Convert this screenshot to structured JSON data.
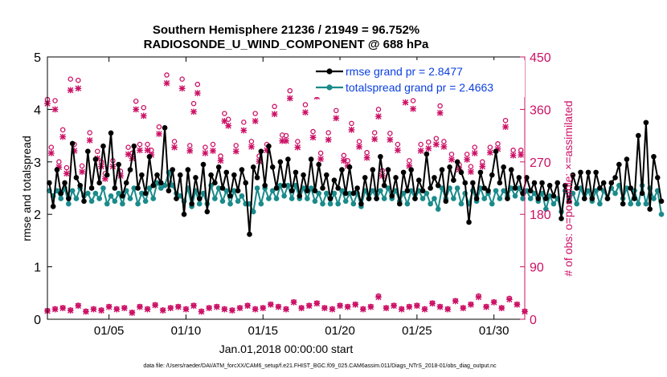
{
  "chart_data": {
    "type": "line",
    "title": "Southern Hemisphere 21236 / 21949 = 96.752%",
    "subtitle": "RADIOSONDE_U_WIND_COMPONENT @ 688 hPa",
    "xlabel": "Jan.01,2018 00:00:00 start",
    "ylabel_left": "rmse and totalspread",
    "ylabel_right": "# of obs: o=possible; ×=assimilated",
    "footnote": "data file: /Users/raeder/DAI/ATM_forcXX/CAM6_setup/f.e21.FHIST_BGC.f09_025.CAM6assim.011/Diags_NTrS_2018-01/obs_diag_output.nc",
    "xlim_days": [
      1,
      32
    ],
    "ylim_left": [
      0,
      5
    ],
    "ylim_right": [
      0,
      450
    ],
    "xticks": [
      {
        "day": 5,
        "label": "01/05"
      },
      {
        "day": 10,
        "label": "01/10"
      },
      {
        "day": 15,
        "label": "01/15"
      },
      {
        "day": 20,
        "label": "01/20"
      },
      {
        "day": 25,
        "label": "01/25"
      },
      {
        "day": 30,
        "label": "01/30"
      }
    ],
    "yticks_left": [
      "0",
      "1",
      "2",
      "3",
      "4",
      "5"
    ],
    "yticks_right": [
      "0",
      "90",
      "180",
      "270",
      "360",
      "450"
    ],
    "x_step_days": 0.25,
    "x_start_day": 1.125,
    "series": [
      {
        "name": "rmse grand pr = 2.8477",
        "axis": "left",
        "color": "#000000",
        "values": [
          2.6,
          2.15,
          2.85,
          2.4,
          2.6,
          2.3,
          3.35,
          2.7,
          2.55,
          2.25,
          3.2,
          2.5,
          3.05,
          2.6,
          3.3,
          2.75,
          3.55,
          2.5,
          2.95,
          2.35,
          2.6,
          2.85,
          3.3,
          2.5,
          2.75,
          2.4,
          3.1,
          2.55,
          2.75,
          2.6,
          3.65,
          2.45,
          2.85,
          2.3,
          2.75,
          2.0,
          2.85,
          2.2,
          2.7,
          2.3,
          2.95,
          2.05,
          2.75,
          2.6,
          2.9,
          2.5,
          2.8,
          2.35,
          2.75,
          2.45,
          2.85,
          2.6,
          1.62,
          2.9,
          2.7,
          3.2,
          2.55,
          3.3,
          2.9,
          2.5,
          3.0,
          2.55,
          3.05,
          2.45,
          2.8,
          2.35,
          2.75,
          2.45,
          3.05,
          2.45,
          2.95,
          2.5,
          2.75,
          2.3,
          2.65,
          2.5,
          2.85,
          2.4,
          2.9,
          2.4,
          2.5,
          2.2,
          2.7,
          2.3,
          2.85,
          2.3,
          3.1,
          2.55,
          2.85,
          2.35,
          2.7,
          2.2,
          2.8,
          2.45,
          2.85,
          2.3,
          2.65,
          2.45,
          3.15,
          2.5,
          2.7,
          2.55,
          2.85,
          2.25,
          2.9,
          2.65,
          3.0,
          2.8,
          2.6,
          1.85,
          2.6,
          2.3,
          2.8,
          2.5,
          2.45,
          2.75,
          3.2,
          2.6,
          2.9,
          2.3,
          2.85,
          2.5,
          2.7,
          2.4,
          2.7,
          2.45,
          2.6,
          2.3,
          2.6,
          2.3,
          2.55,
          2.35,
          2.6,
          1.92,
          2.55,
          2.25,
          2.75,
          2.5,
          2.8,
          2.3,
          2.8,
          2.3,
          2.8,
          2.5,
          2.6,
          2.3,
          2.6,
          2.7,
          2.95,
          2.2,
          3.05,
          2.5,
          2.3,
          3.5,
          2.4,
          3.75,
          2.1,
          3.1,
          2.7,
          2.25
        ]
      },
      {
        "name": "totalspread grand pr = 2.4663",
        "axis": "left",
        "color": "#1a8a8a",
        "values": [
          2.45,
          2.35,
          2.45,
          2.3,
          2.5,
          2.2,
          2.45,
          2.3,
          2.5,
          2.35,
          2.4,
          2.25,
          2.4,
          2.3,
          2.5,
          2.2,
          2.35,
          2.25,
          2.4,
          2.2,
          2.45,
          2.3,
          2.5,
          2.2,
          2.4,
          2.25,
          2.5,
          2.3,
          2.6,
          2.5,
          2.55,
          2.8,
          2.55,
          2.4,
          2.35,
          2.25,
          2.5,
          2.15,
          2.45,
          2.2,
          2.4,
          2.2,
          2.55,
          2.3,
          2.5,
          2.25,
          2.45,
          2.2,
          2.45,
          2.25,
          2.35,
          2.2,
          2.2,
          2.05,
          2.5,
          2.2,
          2.5,
          2.3,
          2.45,
          2.3,
          2.55,
          2.35,
          2.55,
          2.3,
          2.55,
          2.3,
          2.5,
          2.3,
          2.5,
          2.25,
          2.4,
          2.2,
          2.4,
          2.2,
          2.4,
          2.2,
          2.45,
          2.25,
          2.4,
          2.2,
          2.4,
          2.15,
          2.45,
          2.3,
          2.45,
          2.3,
          2.45,
          2.3,
          2.5,
          2.3,
          2.45,
          2.25,
          2.4,
          2.2,
          2.45,
          2.3,
          2.45,
          2.3,
          2.4,
          2.2,
          2.3,
          2.1,
          2.5,
          2.3,
          2.5,
          2.3,
          2.5,
          2.2,
          2.4,
          2.2,
          2.45,
          2.25,
          2.5,
          2.3,
          2.4,
          2.2,
          2.45,
          2.3,
          2.45,
          2.35,
          2.5,
          2.35,
          2.5,
          2.3,
          2.45,
          2.3,
          2.4,
          2.25,
          2.4,
          2.1,
          2.35,
          2.2,
          2.3,
          2.05,
          2.45,
          2.3,
          2.4,
          2.2,
          2.5,
          2.3,
          2.45,
          2.25,
          2.45,
          2.2,
          2.45,
          2.3,
          2.5,
          2.4,
          2.55,
          2.3,
          2.5,
          2.2,
          2.45,
          2.2,
          2.55,
          2.2,
          2.5,
          2.3,
          2.45,
          2.0
        ]
      },
      {
        "name": "obs possible (o)",
        "axis": "right",
        "color": "#cc1166",
        "days": [
          1.0,
          1.25,
          1.5,
          1.75,
          2.0,
          2.25,
          2.5,
          2.75,
          3.0,
          3.25,
          3.75,
          4.25,
          4.5,
          4.75,
          5.25,
          5.75,
          6.25,
          6.5,
          6.75,
          7.0,
          7.25,
          7.5,
          7.75,
          8.25,
          8.75,
          9.25,
          9.75,
          10.25,
          10.5,
          10.75,
          11.25,
          11.75,
          12.25,
          12.5,
          12.75,
          13.25,
          13.75,
          14.25,
          14.5,
          14.75,
          15.25,
          15.75,
          16.25,
          16.5,
          16.75,
          17.25,
          17.75,
          18.25,
          18.5,
          18.75,
          19.25,
          19.75,
          20.25,
          20.5,
          20.75,
          21.25,
          21.75,
          22.25,
          22.5,
          22.75,
          23.25,
          23.75,
          24.25,
          24.5,
          24.75,
          25.25,
          25.75,
          26.25,
          26.5,
          26.75,
          27.25,
          27.75,
          28.25,
          28.5,
          28.75,
          29.25,
          29.75,
          30.25,
          30.5,
          30.75,
          31.25,
          31.75
        ],
        "values": [
          377,
          295,
          375,
          270,
          325,
          260,
          412,
          300,
          410,
          263,
          320,
          288,
          270,
          250,
          272,
          254,
          295,
          285,
          374,
          300,
          363,
          300,
          290,
          330,
          419,
          305,
          412,
          298,
          370,
          403,
          295,
          300,
          280,
          353,
          343,
          298,
          338,
          305,
          353,
          280,
          300,
          365,
          316,
          315,
          392,
          305,
          368,
          322,
          395,
          285,
          320,
          358,
          281,
          272,
          336,
          305,
          286,
          320,
          360,
          255,
          319,
          300,
          386,
          272,
          375,
          300,
          304,
          310,
          366,
          305,
          283,
          265,
          283,
          262,
          295,
          270,
          295,
          301,
          403,
          341,
          290,
          290
        ]
      },
      {
        "name": "obs assimilated (×)",
        "axis": "right",
        "color": "#cc1166",
        "days": [
          1.0,
          1.25,
          1.5,
          1.75,
          2.0,
          2.25,
          2.5,
          2.75,
          3.0,
          3.25,
          3.75,
          4.25,
          4.5,
          4.75,
          5.25,
          5.75,
          6.25,
          6.5,
          6.75,
          7.0,
          7.25,
          7.5,
          7.75,
          8.25,
          8.75,
          9.25,
          9.75,
          10.25,
          10.5,
          10.75,
          11.25,
          11.75,
          12.25,
          12.5,
          12.75,
          13.25,
          13.75,
          14.25,
          14.5,
          14.75,
          15.25,
          15.75,
          16.25,
          16.5,
          16.75,
          17.25,
          17.75,
          18.25,
          18.5,
          18.75,
          19.25,
          19.75,
          20.25,
          20.5,
          20.75,
          21.25,
          21.75,
          22.25,
          22.5,
          22.75,
          23.25,
          23.75,
          24.25,
          24.5,
          24.75,
          25.25,
          25.75,
          26.25,
          26.5,
          26.75,
          27.25,
          27.75,
          28.25,
          28.5,
          28.75,
          29.25,
          29.75,
          30.25,
          30.5,
          30.75,
          31.25,
          31.75
        ],
        "values": [
          370,
          285,
          360,
          261,
          313,
          250,
          393,
          289,
          396,
          253,
          307,
          276,
          262,
          241,
          262,
          246,
          283,
          276,
          360,
          290,
          349,
          290,
          282,
          318,
          405,
          295,
          396,
          289,
          356,
          388,
          285,
          289,
          272,
          340,
          332,
          288,
          324,
          296,
          340,
          271,
          290,
          352,
          306,
          306,
          379,
          295,
          355,
          312,
          382,
          275,
          308,
          345,
          272,
          263,
          325,
          296,
          277,
          309,
          348,
          246,
          308,
          290,
          372,
          263,
          361,
          289,
          293,
          300,
          354,
          296,
          274,
          257,
          274,
          253,
          285,
          262,
          286,
          292,
          389,
          330,
          281,
          282
        ]
      },
      {
        "name": "obs count low (o)",
        "axis": "right",
        "color": "#cc1166",
        "days": [
          1.0,
          1.5,
          2.0,
          2.5,
          3.0,
          3.5,
          4.0,
          4.5,
          5.0,
          5.5,
          6.0,
          6.5,
          7.0,
          7.5,
          8.0,
          8.5,
          9.0,
          9.5,
          10.0,
          10.5,
          11.0,
          11.5,
          12.0,
          12.5,
          13.0,
          13.5,
          14.0,
          14.5,
          15.0,
          15.5,
          16.0,
          16.5,
          17.0,
          17.5,
          18.0,
          18.5,
          19.0,
          19.5,
          20.0,
          20.5,
          21.0,
          21.5,
          22.0,
          22.5,
          23.0,
          23.5,
          24.0,
          24.5,
          25.0,
          25.5,
          26.0,
          26.5,
          27.0,
          27.5,
          28.0,
          28.5,
          29.0,
          29.5,
          30.0,
          30.5,
          31.0,
          31.5,
          32.0
        ],
        "values": [
          15,
          18,
          20,
          16,
          24,
          14,
          18,
          16,
          22,
          18,
          20,
          12,
          22,
          18,
          25,
          16,
          20,
          22,
          18,
          24,
          14,
          20,
          22,
          18,
          16,
          20,
          24,
          18,
          20,
          26,
          22,
          18,
          30,
          20,
          24,
          28,
          20,
          18,
          24,
          22,
          26,
          18,
          22,
          40,
          20,
          24,
          18,
          22,
          24,
          18,
          28,
          22,
          18,
          32,
          20,
          26,
          40,
          22,
          30,
          20,
          36,
          26,
          14
        ]
      },
      {
        "name": "obs count low (×)",
        "axis": "right",
        "color": "#cc1166",
        "days": [
          1.0,
          1.5,
          2.0,
          2.5,
          3.0,
          3.5,
          4.0,
          4.5,
          5.0,
          5.5,
          6.0,
          6.5,
          7.0,
          7.5,
          8.0,
          8.5,
          9.0,
          9.5,
          10.0,
          10.5,
          11.0,
          11.5,
          12.0,
          12.5,
          13.0,
          13.5,
          14.0,
          14.5,
          15.0,
          15.5,
          16.0,
          16.5,
          17.0,
          17.5,
          18.0,
          18.5,
          19.0,
          19.5,
          20.0,
          20.5,
          21.0,
          21.5,
          22.0,
          22.5,
          23.0,
          23.5,
          24.0,
          24.5,
          25.0,
          25.5,
          26.0,
          26.5,
          27.0,
          27.5,
          28.0,
          28.5,
          29.0,
          29.5,
          30.0,
          30.5,
          31.0,
          31.5,
          32.0
        ],
        "values": [
          14,
          17,
          19,
          15,
          23,
          13,
          17,
          15,
          21,
          17,
          19,
          11,
          21,
          17,
          24,
          15,
          19,
          21,
          17,
          23,
          13,
          19,
          21,
          17,
          15,
          19,
          23,
          17,
          19,
          25,
          21,
          17,
          29,
          19,
          23,
          27,
          19,
          17,
          23,
          21,
          25,
          17,
          21,
          38,
          19,
          23,
          17,
          21,
          23,
          17,
          27,
          21,
          17,
          31,
          19,
          25,
          38,
          21,
          29,
          19,
          34,
          25,
          13
        ]
      }
    ],
    "legend": {
      "position": "top-right",
      "entries": [
        "rmse grand pr = 2.8477",
        "totalspread grand pr = 2.4663"
      ]
    },
    "grid": false
  }
}
